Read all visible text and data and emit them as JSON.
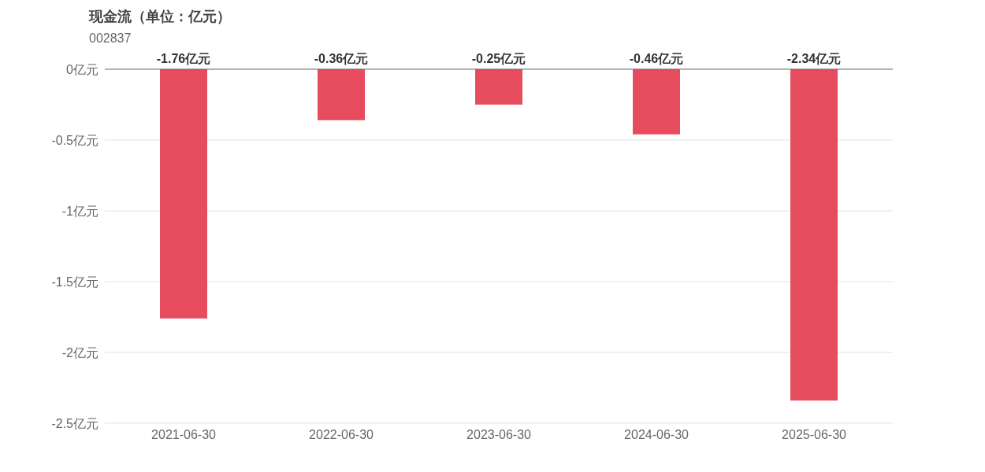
{
  "chart_data": {
    "type": "bar",
    "title": "现金流（单位：亿元）",
    "subtitle": "002837",
    "categories": [
      "2021-06-30",
      "2022-06-30",
      "2023-06-30",
      "2024-06-30",
      "2025-06-30"
    ],
    "values": [
      -1.76,
      -0.36,
      -0.25,
      -0.46,
      -2.34
    ],
    "value_labels": [
      "-1.76亿元",
      "-0.36亿元",
      "-0.25亿元",
      "-0.46亿元",
      "-2.34亿元"
    ],
    "color": "#e64c5e",
    "ylim": [
      -2.5,
      0
    ],
    "yticks": [
      {
        "value": 0,
        "label": "0亿元"
      },
      {
        "value": -0.5,
        "label": "-0.5亿元"
      },
      {
        "value": -1,
        "label": "-1亿元"
      },
      {
        "value": -1.5,
        "label": "-1.5亿元"
      },
      {
        "value": -2,
        "label": "-2亿元"
      },
      {
        "value": -2.5,
        "label": "-2.5亿元"
      }
    ],
    "grid": "y"
  }
}
